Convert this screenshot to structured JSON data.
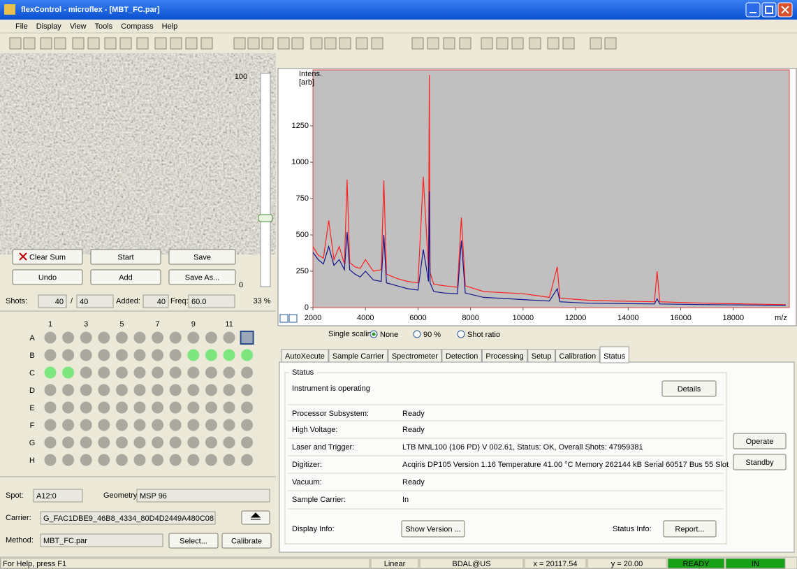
{
  "window": {
    "title": "flexControl - microflex - [MBT_FC.par]"
  },
  "menu": [
    "File",
    "Display",
    "View",
    "Tools",
    "Compass",
    "Help"
  ],
  "camera": {
    "slider_max": "100",
    "slider_min": "0",
    "percent": "33 %"
  },
  "buttons": {
    "clear_sum": "Clear Sum",
    "start": "Start",
    "save": "Save",
    "undo": "Undo",
    "add": "Add",
    "save_as": "Save As..."
  },
  "shots": {
    "label": "Shots:",
    "value": "40",
    "sep": "/",
    "target": "40",
    "added_label": "Added:",
    "added": "40",
    "freq_label": "Freq:",
    "freq": "60.0"
  },
  "plate": {
    "columns": [
      "1",
      "3",
      "5",
      "7",
      "9",
      "11"
    ],
    "rows": [
      "A",
      "B",
      "C",
      "D",
      "E",
      "F",
      "G",
      "H"
    ]
  },
  "info": {
    "spot_label": "Spot:",
    "spot": "A12:0",
    "geometry_label": "Geometry:",
    "geometry": "MSP 96",
    "carrier_label": "Carrier:",
    "carrier": "G_FAC1DBE9_46B8_4334_80D4D2449A480C08",
    "method_label": "Method:",
    "method": "MBT_FC.par",
    "select": "Select...",
    "calibrate": "Calibrate"
  },
  "chart_data": {
    "type": "line",
    "ylabel": [
      "Intens.",
      "[arb]"
    ],
    "xlabel": "m/z",
    "xlim": [
      2000,
      20133
    ],
    "ylim": [
      0,
      1635
    ],
    "xticks": [
      2000,
      4000,
      6000,
      8000,
      10000,
      12000,
      14000,
      16000,
      18000
    ],
    "yticks": [
      0,
      250,
      500,
      750,
      1000,
      1250
    ],
    "x": [
      2000,
      2200,
      2400,
      2600,
      2800,
      3000,
      3200,
      3300,
      3400,
      3600,
      3800,
      4000,
      4300,
      4600,
      4700,
      4800,
      5200,
      5600,
      6000,
      6200,
      6400,
      6430,
      6460,
      6600,
      7000,
      7500,
      7650,
      7800,
      8500,
      9500,
      10000,
      11000,
      11300,
      11400,
      12500,
      13500,
      15000,
      15100,
      15200,
      17000,
      18500,
      20000
    ],
    "series": [
      {
        "color": "#ff2020",
        "values": [
          420,
          360,
          340,
          600,
          330,
          420,
          300,
          880,
          310,
          280,
          270,
          330,
          250,
          260,
          875,
          230,
          200,
          180,
          170,
          900,
          260,
          1600,
          240,
          160,
          150,
          140,
          620,
          150,
          110,
          100,
          95,
          70,
          280,
          65,
          50,
          45,
          40,
          250,
          40,
          30,
          25,
          20
        ]
      },
      {
        "color": "#14148c",
        "values": [
          380,
          330,
          300,
          420,
          290,
          330,
          260,
          520,
          260,
          230,
          210,
          250,
          190,
          180,
          500,
          170,
          150,
          130,
          120,
          400,
          180,
          800,
          170,
          110,
          100,
          95,
          460,
          100,
          70,
          60,
          55,
          45,
          130,
          40,
          30,
          28,
          25,
          60,
          25,
          20,
          18,
          15
        ]
      }
    ]
  },
  "scaling": {
    "label": "Single scaling:",
    "options": [
      "None",
      "90 %",
      "Shot ratio"
    ]
  },
  "tabs": [
    "AutoXecute",
    "Sample Carrier",
    "Spectrometer",
    "Detection",
    "Processing",
    "Setup",
    "Calibration",
    "Status"
  ],
  "status": {
    "group": "Status",
    "message": "Instrument is operating",
    "details": "Details",
    "rows": [
      [
        "Processor Subsystem:",
        "Ready"
      ],
      [
        "High Voltage:",
        "Ready"
      ],
      [
        "Laser and Trigger:",
        "LTB MNL100 (106 PD) V 002.61, Status: OK, Overall Shots: 47959381"
      ],
      [
        "Digitizer:",
        "Acqiris DP105 Version 1.16 Temperature 41.00 °C Memory 262144 kB Serial 60517 Bus 55 Slot"
      ],
      [
        "Vacuum:",
        "Ready"
      ],
      [
        "Sample Carrier:",
        "In"
      ]
    ],
    "display_info": "Display Info:",
    "show_version": "Show Version ...",
    "status_info": "Status Info:",
    "report": "Report...",
    "operate": "Operate",
    "standby": "Standby"
  },
  "statusbar": [
    "For Help, press F1",
    "Linear",
    "BDAL@US",
    "x = 20117.54",
    "y = 20.00",
    "READY",
    "IN"
  ]
}
